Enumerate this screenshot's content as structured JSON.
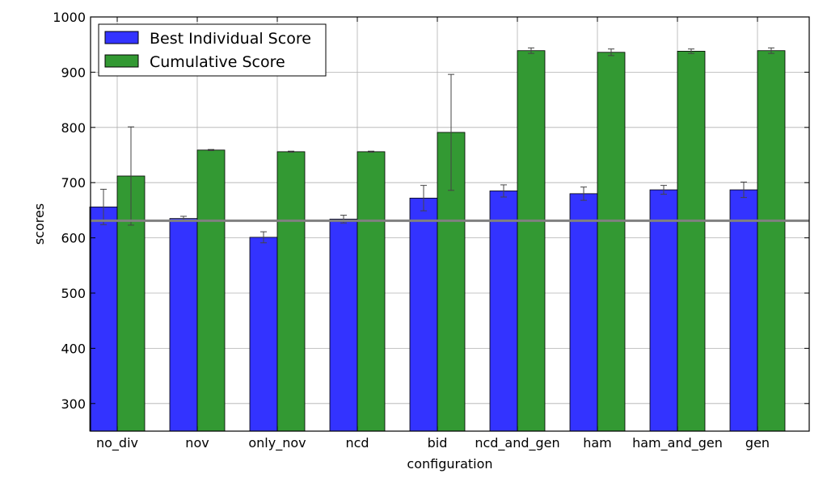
{
  "chart_data": {
    "type": "bar",
    "title": "",
    "xlabel": "configuration",
    "ylabel": "scores",
    "ylim": [
      250,
      1000
    ],
    "yticks": [
      300,
      400,
      500,
      600,
      700,
      800,
      900,
      1000
    ],
    "grid": true,
    "legend_position": "top-left",
    "baseline": {
      "value": 631,
      "color": "#808080"
    },
    "categories": [
      "no_div",
      "nov",
      "only_nov",
      "ncd",
      "bid",
      "ncd_and_gen",
      "ham",
      "ham_and_gen",
      "gen"
    ],
    "series": [
      {
        "name": "Best Individual Score",
        "color": "#3333ff",
        "values": [
          656,
          635,
          601,
          634,
          672,
          685,
          680,
          687,
          687
        ],
        "errors": [
          32,
          4,
          10,
          7,
          23,
          11,
          12,
          8,
          14
        ]
      },
      {
        "name": "Cumulative Score",
        "color": "#339933",
        "values": [
          712,
          759,
          756,
          756,
          791,
          939,
          936,
          938,
          939
        ],
        "errors": [
          89,
          1,
          1,
          1,
          105,
          5,
          6,
          4,
          5
        ]
      }
    ]
  }
}
